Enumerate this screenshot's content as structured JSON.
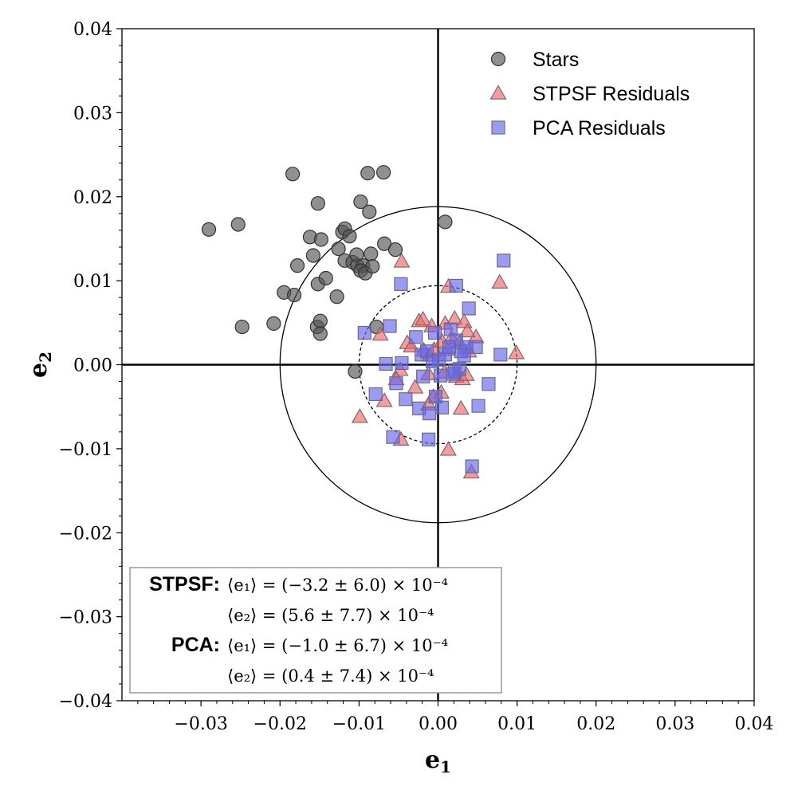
{
  "chart_data": {
    "type": "scatter",
    "xlabel": "e",
    "xlabel_sub": "1",
    "ylabel": "e",
    "ylabel_sub": "2",
    "xlim": [
      -0.04,
      0.04
    ],
    "ylim": [
      -0.04,
      0.04
    ],
    "x_ticks": [
      -0.03,
      -0.02,
      -0.01,
      0.0,
      0.01,
      0.02,
      0.03,
      0.04
    ],
    "x_tick_labels": [
      "−0.03",
      "−0.02",
      "−0.01",
      "0.00",
      "0.01",
      "0.02",
      "0.03",
      "0.04"
    ],
    "y_ticks": [
      0.04,
      0.03,
      0.02,
      0.01,
      0.0,
      -0.01,
      -0.02,
      -0.03,
      -0.04
    ],
    "y_tick_labels": [
      "0.04",
      "0.03",
      "0.02",
      "0.01",
      "0.00",
      "−0.01",
      "−0.02",
      "−0.03",
      "−0.04"
    ],
    "grid": false,
    "legend_position": "top-right",
    "reference_circles": [
      {
        "radius": 0.02,
        "style": "solid"
      },
      {
        "radius": 0.01,
        "style": "dashed"
      }
    ],
    "series": [
      {
        "name": "Stars",
        "marker": "circle",
        "color": "#555555",
        "edge": "#333333",
        "points": [
          [
            -0.029,
            0.0161
          ],
          [
            -0.0253,
            0.0167
          ],
          [
            -0.0248,
            0.0045
          ],
          [
            -0.0208,
            0.0049
          ],
          [
            -0.0184,
            0.0227
          ],
          [
            -0.0195,
            0.0086
          ],
          [
            -0.0182,
            0.0083
          ],
          [
            -0.0178,
            0.0118
          ],
          [
            -0.0162,
            0.0152
          ],
          [
            -0.0158,
            0.013
          ],
          [
            -0.0152,
            0.0192
          ],
          [
            -0.0152,
            0.0096
          ],
          [
            -0.0148,
            0.0149
          ],
          [
            -0.0142,
            0.0103
          ],
          [
            -0.0153,
            0.0045
          ],
          [
            -0.0149,
            0.0052
          ],
          [
            -0.0149,
            0.0037
          ],
          [
            -0.0128,
            0.0081
          ],
          [
            -0.0126,
            0.0138
          ],
          [
            -0.0121,
            0.0158
          ],
          [
            -0.0118,
            0.0162
          ],
          [
            -0.0112,
            0.0153
          ],
          [
            -0.0118,
            0.0124
          ],
          [
            -0.0108,
            0.0122
          ],
          [
            -0.0102,
            0.0118
          ],
          [
            -0.0103,
            0.0131
          ],
          [
            -0.0095,
            0.0118
          ],
          [
            -0.0098,
            0.0112
          ],
          [
            -0.0092,
            0.0109
          ],
          [
            -0.0089,
            0.0228
          ],
          [
            -0.0087,
            0.0182
          ],
          [
            -0.0098,
            0.0194
          ],
          [
            -0.0085,
            0.0132
          ],
          [
            -0.0083,
            0.0117
          ],
          [
            -0.0069,
            0.0229
          ],
          [
            -0.0068,
            0.0144
          ],
          [
            -0.0054,
            0.0137
          ],
          [
            -0.0078,
            0.0045
          ],
          [
            -0.0105,
            -0.0008
          ],
          [
            0.0009,
            0.017
          ]
        ]
      },
      {
        "name": "STPSF Residuals",
        "marker": "triangle",
        "color": "#f2666a",
        "edge": "#7a6b6b",
        "points": [
          [
            -0.0046,
            0.0123
          ],
          [
            0.0013,
            0.0093
          ],
          [
            0.0078,
            0.0098
          ],
          [
            0.0099,
            0.0014
          ],
          [
            -0.0099,
            -0.0062
          ],
          [
            -0.0047,
            -0.0089
          ],
          [
            0.0013,
            -0.0101
          ],
          [
            0.0042,
            -0.0128
          ],
          [
            -0.0073,
            0.0036
          ],
          [
            -0.0024,
            0.0052
          ],
          [
            -0.0019,
            0.0054
          ],
          [
            -0.0008,
            0.0046
          ],
          [
            0.0009,
            0.0049
          ],
          [
            0.0021,
            0.0055
          ],
          [
            0.0033,
            0.0051
          ],
          [
            0.0048,
            0.0033
          ],
          [
            0.0037,
            0.004
          ],
          [
            -0.0039,
            0.0026
          ],
          [
            -0.0034,
            0.0022
          ],
          [
            -0.0018,
            0.0017
          ],
          [
            -0.0011,
            0.0011
          ],
          [
            -0.0005,
            0.0018
          ],
          [
            0.0005,
            0.0028
          ],
          [
            0.0017,
            0.0032
          ],
          [
            0.0027,
            0.0026
          ],
          [
            0.0039,
            0.0016
          ],
          [
            -0.0048,
            -0.0006
          ],
          [
            -0.0053,
            -0.0017
          ],
          [
            -0.0068,
            -0.0043
          ],
          [
            -0.0029,
            -0.0027
          ],
          [
            -0.0012,
            -0.0011
          ],
          [
            0.0008,
            -0.0009
          ],
          [
            0.0023,
            -0.0014
          ],
          [
            0.0031,
            -0.0017
          ],
          [
            0.0036,
            -0.0012
          ],
          [
            -0.0006,
            -0.0038
          ],
          [
            0.0004,
            -0.0033
          ],
          [
            0.0029,
            -0.0052
          ],
          [
            -0.0012,
            -0.0047
          ],
          [
            0.0012,
            0.0018
          ]
        ]
      },
      {
        "name": "PCA Residuals",
        "marker": "square",
        "color": "#6666ee",
        "edge": "#6a6a8a",
        "points": [
          [
            0.0083,
            0.0124
          ],
          [
            -0.0047,
            0.0096
          ],
          [
            0.0023,
            0.0094
          ],
          [
            0.0039,
            0.0067
          ],
          [
            -0.0093,
            0.0038
          ],
          [
            -0.0061,
            0.0046
          ],
          [
            -0.0028,
            0.0033
          ],
          [
            -0.0004,
            0.0038
          ],
          [
            0.0016,
            0.0042
          ],
          [
            0.0023,
            0.0029
          ],
          [
            0.0048,
            0.0021
          ],
          [
            0.0079,
            0.0012
          ],
          [
            -0.0066,
            0.0001
          ],
          [
            -0.0046,
            0.0002
          ],
          [
            -0.0021,
            0.0012
          ],
          [
            -0.0014,
            0.0016
          ],
          [
            0.0001,
            0.0006
          ],
          [
            0.0009,
            0.0012
          ],
          [
            0.0029,
            0.0016
          ],
          [
            0.0036,
            0.0021
          ],
          [
            -0.0079,
            -0.0035
          ],
          [
            -0.0053,
            -0.0022
          ],
          [
            -0.0041,
            -0.0041
          ],
          [
            -0.0024,
            -0.0052
          ],
          [
            -0.0011,
            -0.0058
          ],
          [
            -0.0003,
            -0.0038
          ],
          [
            0.0003,
            -0.0013
          ],
          [
            0.0021,
            -0.0008
          ],
          [
            0.0027,
            -0.0005
          ],
          [
            0.0064,
            -0.0023
          ],
          [
            0.0051,
            -0.0049
          ],
          [
            -0.0057,
            -0.0086
          ],
          [
            -0.0012,
            -0.0089
          ],
          [
            0.0043,
            -0.0121
          ],
          [
            0.0014,
            0.0021
          ],
          [
            0.0019,
            -0.0011
          ],
          [
            -0.0019,
            -0.0014
          ],
          [
            0.0005,
            -0.0051
          ],
          [
            0.0033,
            0.0011
          ],
          [
            -0.0007,
            0.0004
          ]
        ]
      }
    ],
    "stats_box": [
      {
        "label": "STPSF:",
        "line": "⟨e₁⟩ = (−3.2 ± 6.0) × 10⁻⁴"
      },
      {
        "label": "",
        "line": "⟨e₂⟩ = (5.6 ± 7.7) × 10⁻⁴"
      },
      {
        "label": "PCA:",
        "line": "⟨e₁⟩ = (−1.0 ± 6.7) × 10⁻⁴"
      },
      {
        "label": "",
        "line": "⟨e₂⟩ = (0.4 ± 7.4) × 10⁻⁴"
      }
    ]
  }
}
